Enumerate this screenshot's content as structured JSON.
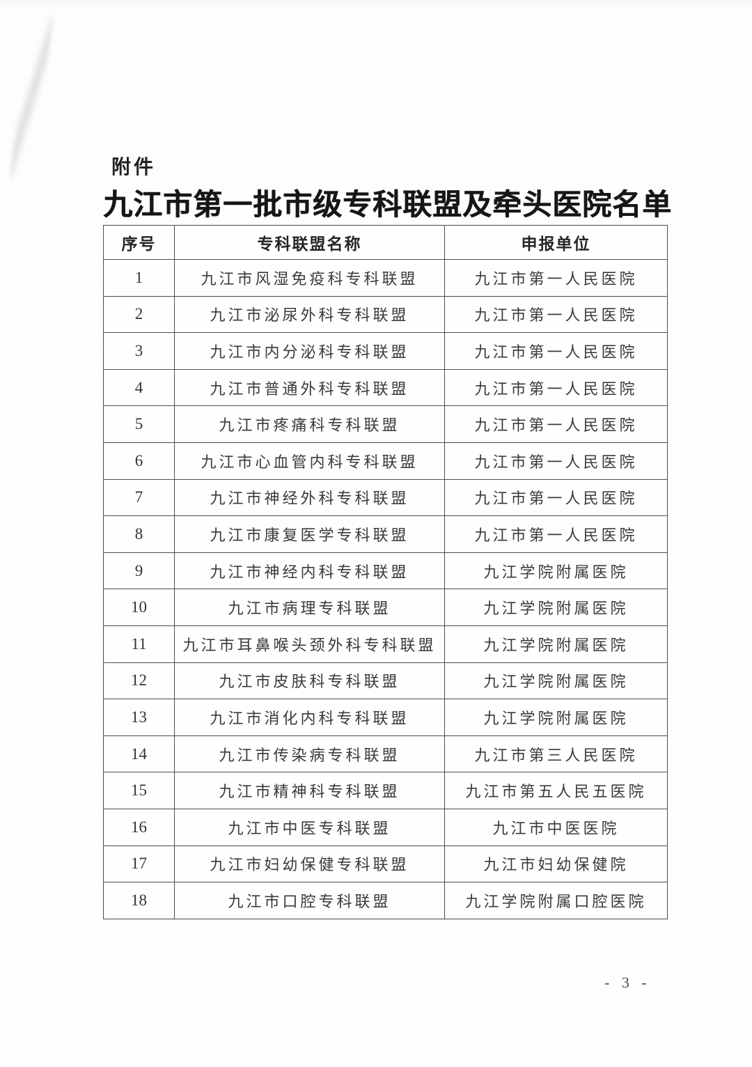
{
  "page": {
    "attachment_label": "附件",
    "title": "九江市第一批市级专科联盟及牵头医院名单",
    "page_number": "- 3 -"
  },
  "table": {
    "headers": {
      "no": "序号",
      "alliance": "专科联盟名称",
      "unit": "申报单位"
    },
    "rows": [
      {
        "no": "1",
        "alliance": "九江市风湿免疫科专科联盟",
        "unit": "九江市第一人民医院"
      },
      {
        "no": "2",
        "alliance": "九江市泌尿外科专科联盟",
        "unit": "九江市第一人民医院"
      },
      {
        "no": "3",
        "alliance": "九江市内分泌科专科联盟",
        "unit": "九江市第一人民医院"
      },
      {
        "no": "4",
        "alliance": "九江市普通外科专科联盟",
        "unit": "九江市第一人民医院"
      },
      {
        "no": "5",
        "alliance": "九江市疼痛科专科联盟",
        "unit": "九江市第一人民医院"
      },
      {
        "no": "6",
        "alliance": "九江市心血管内科专科联盟",
        "unit": "九江市第一人民医院"
      },
      {
        "no": "7",
        "alliance": "九江市神经外科专科联盟",
        "unit": "九江市第一人民医院"
      },
      {
        "no": "8",
        "alliance": "九江市康复医学专科联盟",
        "unit": "九江市第一人民医院"
      },
      {
        "no": "9",
        "alliance": "九江市神经内科专科联盟",
        "unit": "九江学院附属医院"
      },
      {
        "no": "10",
        "alliance": "九江市病理专科联盟",
        "unit": "九江学院附属医院"
      },
      {
        "no": "11",
        "alliance": "九江市耳鼻喉头颈外科专科联盟",
        "unit": "九江学院附属医院"
      },
      {
        "no": "12",
        "alliance": "九江市皮肤科专科联盟",
        "unit": "九江学院附属医院"
      },
      {
        "no": "13",
        "alliance": "九江市消化内科专科联盟",
        "unit": "九江学院附属医院"
      },
      {
        "no": "14",
        "alliance": "九江市传染病专科联盟",
        "unit": "九江市第三人民医院"
      },
      {
        "no": "15",
        "alliance": "九江市精神科专科联盟",
        "unit": "九江市第五人民五医院"
      },
      {
        "no": "16",
        "alliance": "九江市中医专科联盟",
        "unit": "九江市中医医院"
      },
      {
        "no": "17",
        "alliance": "九江市妇幼保健专科联盟",
        "unit": "九江市妇幼保健院"
      },
      {
        "no": "18",
        "alliance": "九江市口腔专科联盟",
        "unit": "九江学院附属口腔医院"
      }
    ]
  }
}
